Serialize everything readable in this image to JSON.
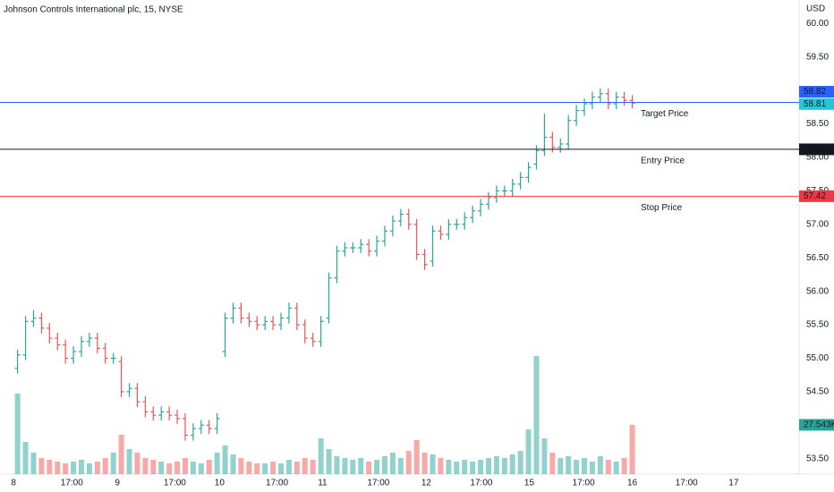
{
  "chart_data": {
    "type": "ohlc",
    "title": "Johnson Controls International plc, 15, NYSE",
    "currency": "USD",
    "up_color": "#26a69a",
    "down_color": "#ef5350",
    "grid": false,
    "xlim": [
      -1.7,
      98.4
    ],
    "xticks": [
      {
        "value": 0,
        "label": "8"
      },
      {
        "value": 7.3,
        "label": "17:00"
      },
      {
        "value": 13,
        "label": "9"
      },
      {
        "value": 20.2,
        "label": "17:00"
      },
      {
        "value": 25.8,
        "label": "10"
      },
      {
        "value": 33,
        "label": "17:00"
      },
      {
        "value": 38.7,
        "label": "11"
      },
      {
        "value": 45.7,
        "label": "17:00"
      },
      {
        "value": 51.7,
        "label": "12"
      },
      {
        "value": 58.6,
        "label": "17:00"
      },
      {
        "value": 64.6,
        "label": "15"
      },
      {
        "value": 71.4,
        "label": "17:00"
      },
      {
        "value": 77.5,
        "label": "16"
      },
      {
        "value": 84.3,
        "label": "17:00"
      },
      {
        "value": 90.2,
        "label": "17"
      }
    ],
    "ylim": [
      53.27,
      60.35
    ],
    "yticks": [
      {
        "value": 53.5,
        "label": "53.50"
      },
      {
        "value": 54,
        "label": "54.00"
      },
      {
        "value": 54.5,
        "label": "54.50"
      },
      {
        "value": 55,
        "label": "55.00"
      },
      {
        "value": 55.5,
        "label": "55.50"
      },
      {
        "value": 56,
        "label": "56.00"
      },
      {
        "value": 56.5,
        "label": "56.50"
      },
      {
        "value": 57,
        "label": "57.00"
      },
      {
        "value": 57.5,
        "label": "57.50"
      },
      {
        "value": 58,
        "label": "58.00"
      },
      {
        "value": 58.5,
        "label": "58.50"
      },
      {
        "value": 59,
        "label": "59.00"
      },
      {
        "value": 59.5,
        "label": "59.50"
      },
      {
        "value": 60,
        "label": "60.00"
      }
    ],
    "open": [
      54.85,
      55.05,
      55.55,
      55.6,
      55.45,
      55.3,
      55.2,
      55.0,
      55.1,
      55.25,
      55.3,
      55.15,
      55.0,
      54.95,
      54.5,
      54.55,
      54.35,
      54.2,
      54.15,
      54.2,
      54.15,
      54.1,
      53.85,
      53.95,
      54.0,
      53.95,
      55.1,
      55.6,
      55.75,
      55.6,
      55.55,
      55.5,
      55.55,
      55.5,
      55.6,
      55.75,
      55.5,
      55.3,
      55.25,
      55.6,
      56.2,
      56.6,
      56.65,
      56.65,
      56.7,
      56.6,
      56.75,
      56.9,
      57.05,
      57.15,
      57.0,
      56.55,
      56.45,
      56.9,
      56.85,
      57.0,
      57.0,
      57.1,
      57.2,
      57.3,
      57.4,
      57.5,
      57.5,
      57.6,
      57.7,
      57.9,
      58.1,
      58.3,
      58.15,
      58.2,
      58.55,
      58.7,
      58.8,
      58.9,
      58.95,
      58.8,
      58.9,
      58.85
    ],
    "high": [
      55.13,
      55.63,
      55.72,
      55.68,
      55.53,
      55.38,
      55.28,
      55.18,
      55.33,
      55.38,
      55.38,
      55.23,
      55.08,
      55.03,
      54.63,
      54.63,
      54.43,
      54.28,
      54.28,
      54.28,
      54.23,
      54.18,
      54.03,
      54.08,
      54.08,
      54.18,
      55.68,
      55.83,
      55.83,
      55.68,
      55.63,
      55.63,
      55.63,
      55.68,
      55.83,
      55.83,
      55.58,
      55.38,
      55.63,
      56.28,
      56.68,
      56.73,
      56.73,
      56.78,
      56.78,
      56.83,
      56.98,
      57.13,
      57.23,
      57.23,
      57.08,
      56.63,
      56.98,
      56.98,
      57.08,
      57.08,
      57.18,
      57.28,
      57.38,
      57.48,
      57.58,
      57.58,
      57.68,
      57.78,
      57.93,
      58.18,
      58.65,
      58.38,
      58.28,
      58.63,
      58.78,
      58.88,
      58.98,
      59.03,
      59.03,
      58.98,
      58.98,
      58.93
    ],
    "low": [
      54.77,
      54.97,
      55.47,
      55.37,
      55.22,
      55.12,
      54.92,
      54.92,
      55.02,
      55.17,
      55.07,
      54.92,
      54.92,
      54.42,
      54.42,
      54.27,
      54.12,
      54.07,
      54.07,
      54.07,
      54.02,
      53.77,
      53.77,
      53.87,
      53.87,
      53.87,
      55.02,
      55.52,
      55.52,
      55.47,
      55.42,
      55.42,
      55.42,
      55.42,
      55.52,
      55.42,
      55.22,
      55.17,
      55.17,
      55.52,
      56.12,
      56.52,
      56.57,
      56.57,
      56.52,
      56.52,
      56.67,
      56.82,
      56.97,
      56.92,
      56.47,
      56.32,
      56.37,
      56.77,
      56.77,
      56.92,
      56.92,
      57.02,
      57.12,
      57.22,
      57.32,
      57.42,
      57.42,
      57.52,
      57.62,
      57.82,
      58.02,
      58.07,
      58.07,
      58.12,
      58.47,
      58.62,
      58.72,
      58.82,
      58.72,
      58.72,
      58.77,
      58.73
    ],
    "close": [
      55.05,
      55.55,
      55.6,
      55.45,
      55.3,
      55.2,
      55.0,
      55.1,
      55.25,
      55.3,
      55.15,
      55.0,
      55.0,
      54.5,
      54.55,
      54.35,
      54.2,
      54.15,
      54.2,
      54.15,
      54.1,
      53.85,
      53.95,
      54.0,
      53.95,
      54.1,
      55.6,
      55.75,
      55.6,
      55.55,
      55.5,
      55.55,
      55.5,
      55.6,
      55.75,
      55.5,
      55.3,
      55.25,
      55.55,
      56.2,
      56.6,
      56.65,
      56.65,
      56.7,
      56.6,
      56.75,
      56.9,
      57.05,
      57.15,
      57.0,
      56.55,
      56.4,
      56.9,
      56.85,
      57.0,
      57.0,
      57.1,
      57.2,
      57.3,
      57.4,
      57.5,
      57.5,
      57.6,
      57.7,
      57.85,
      58.1,
      58.3,
      58.15,
      58.2,
      58.55,
      58.7,
      58.8,
      58.9,
      58.95,
      58.8,
      58.9,
      58.85,
      58.81
    ],
    "last_price_label": "58.81",
    "volume_lim": [
      0,
      265000
    ],
    "volume": [
      45000,
      18000,
      12000,
      9000,
      8000,
      7000,
      6000,
      7000,
      8000,
      6000,
      7000,
      9000,
      12000,
      22000,
      14000,
      12000,
      9000,
      8000,
      7000,
      6000,
      7000,
      9000,
      7000,
      6000,
      8000,
      12000,
      16000,
      11000,
      9000,
      7000,
      6000,
      6000,
      7000,
      6000,
      8000,
      7000,
      9000,
      8000,
      20000,
      14000,
      10000,
      9000,
      8000,
      9000,
      7000,
      8000,
      10000,
      12000,
      9000,
      13000,
      19000,
      12000,
      11000,
      9000,
      8000,
      7000,
      8000,
      7000,
      8000,
      9000,
      10000,
      9000,
      11000,
      13000,
      25000,
      66000,
      20000,
      12000,
      9000,
      10000,
      8000,
      9000,
      7000,
      10000,
      8000,
      7000,
      9000,
      27543
    ],
    "last_volume_label": "27.543K",
    "levels": [
      {
        "name": "Target Price",
        "value": 58.82,
        "label": "58.82",
        "color": "#2962ff"
      },
      {
        "name": "Entry Price",
        "value": 58.12,
        "label": "58.12",
        "color": "#131722"
      },
      {
        "name": "Stop Price",
        "value": 57.42,
        "label": "57.42",
        "color": "#f23645"
      }
    ]
  }
}
